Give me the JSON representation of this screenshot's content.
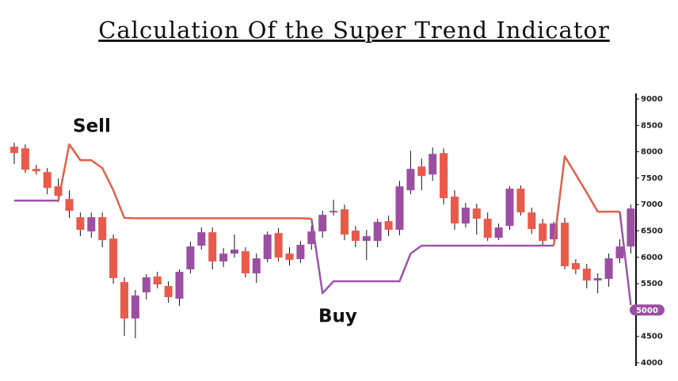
{
  "chart_data": {
    "type": "candlestick",
    "title": "Calculation Of the Super Trend Indicator",
    "annotations": [
      "Sell",
      "Buy"
    ],
    "up_color": "#9c4ea3",
    "down_color": "#ea5a4a",
    "open": [
      8095,
      8065,
      7675,
      7615,
      7345,
      7105,
      6760,
      6490,
      6760,
      6355,
      5530,
      4840,
      5335,
      5635,
      5455,
      5215,
      5770,
      6220,
      6475,
      5920,
      6070,
      6115,
      5695,
      5965,
      6460,
      6070,
      5965,
      6250,
      6490,
      6850,
      6910,
      6505,
      6310,
      6310,
      6685,
      6520,
      7270,
      7720,
      7570,
      7975,
      7150,
      6640,
      6925,
      6730,
      6370,
      6595,
      7300,
      6850,
      6640,
      6340,
      6655,
      5890,
      5785,
      5560,
      5590,
      5980,
      6205
    ],
    "high": [
      8170,
      8140,
      7750,
      7690,
      7495,
      7270,
      6850,
      6850,
      6850,
      6430,
      5620,
      5380,
      5680,
      5725,
      5545,
      5770,
      6295,
      6565,
      6565,
      6175,
      6430,
      6190,
      6070,
      6490,
      6550,
      6190,
      6310,
      6595,
      6880,
      7090,
      7000,
      6595,
      6520,
      6730,
      6790,
      7450,
      8020,
      7870,
      8080,
      8065,
      7270,
      7030,
      7015,
      6850,
      6640,
      7345,
      7360,
      6940,
      6730,
      6670,
      6745,
      5965,
      5875,
      5695,
      6070,
      6340,
      7000
    ],
    "low": [
      7765,
      7600,
      7570,
      7195,
      7045,
      6745,
      6400,
      6370,
      6190,
      5500,
      4510,
      4465,
      5200,
      5410,
      5140,
      5080,
      5695,
      6145,
      5770,
      5815,
      5995,
      5620,
      5515,
      5905,
      5920,
      5845,
      5890,
      6145,
      6370,
      6790,
      6325,
      6190,
      5950,
      6190,
      6400,
      6415,
      7195,
      7270,
      7450,
      7000,
      6520,
      6565,
      6430,
      6310,
      6325,
      6520,
      6790,
      6445,
      6220,
      6280,
      5770,
      5680,
      5410,
      5320,
      5440,
      5890,
      6070
    ],
    "close": [
      7975,
      7660,
      7630,
      7315,
      7165,
      6880,
      6520,
      6760,
      6325,
      5605,
      4840,
      5275,
      5620,
      5485,
      5245,
      5725,
      6205,
      6475,
      5920,
      6070,
      6145,
      5695,
      5980,
      6430,
      5995,
      5950,
      6235,
      6490,
      6805,
      6880,
      6430,
      6310,
      6400,
      6670,
      6520,
      7345,
      7675,
      7540,
      7960,
      7120,
      6640,
      6940,
      6730,
      6370,
      6565,
      7300,
      6850,
      6535,
      6310,
      6640,
      5830,
      5770,
      5560,
      5605,
      5980,
      6205,
      6925
    ],
    "supertrend": [
      {
        "color": "#9b55a8",
        "values": [
          7075,
          7075,
          7075,
          7075,
          7075,
          null,
          null,
          null,
          null,
          null,
          null,
          null,
          null,
          null,
          null,
          null,
          null,
          null,
          null,
          null,
          null,
          null,
          null,
          null,
          null,
          null,
          null,
          6730,
          5320,
          5545,
          5545,
          5545,
          5545,
          5545,
          5545,
          5545,
          6070,
          6220,
          6220,
          6220,
          6220,
          6220,
          6220,
          6220,
          6220,
          6220,
          6220,
          6220,
          6220,
          6220,
          null,
          null,
          null,
          null,
          null,
          6865,
          5095
        ]
      },
      {
        "color": "#e0604a",
        "values": [
          null,
          null,
          null,
          null,
          7075,
          8140,
          7840,
          7840,
          7690,
          7270,
          6745,
          6740,
          6740,
          6740,
          6740,
          6740,
          6740,
          6740,
          6740,
          6740,
          6740,
          6740,
          6740,
          6740,
          6740,
          6740,
          6740,
          6730,
          null,
          null,
          null,
          null,
          null,
          null,
          null,
          null,
          null,
          null,
          null,
          null,
          null,
          null,
          null,
          null,
          null,
          null,
          null,
          null,
          null,
          6220,
          7915,
          7570,
          7225,
          6865,
          6865,
          6865,
          null
        ]
      }
    ],
    "ylim": [
      4000,
      9000
    ],
    "yticks": [
      4000,
      4500,
      5500,
      6000,
      6500,
      7000,
      7500,
      8000,
      8500,
      9000
    ],
    "last_price": 5000,
    "last_price_color": "#9c4ea3"
  }
}
